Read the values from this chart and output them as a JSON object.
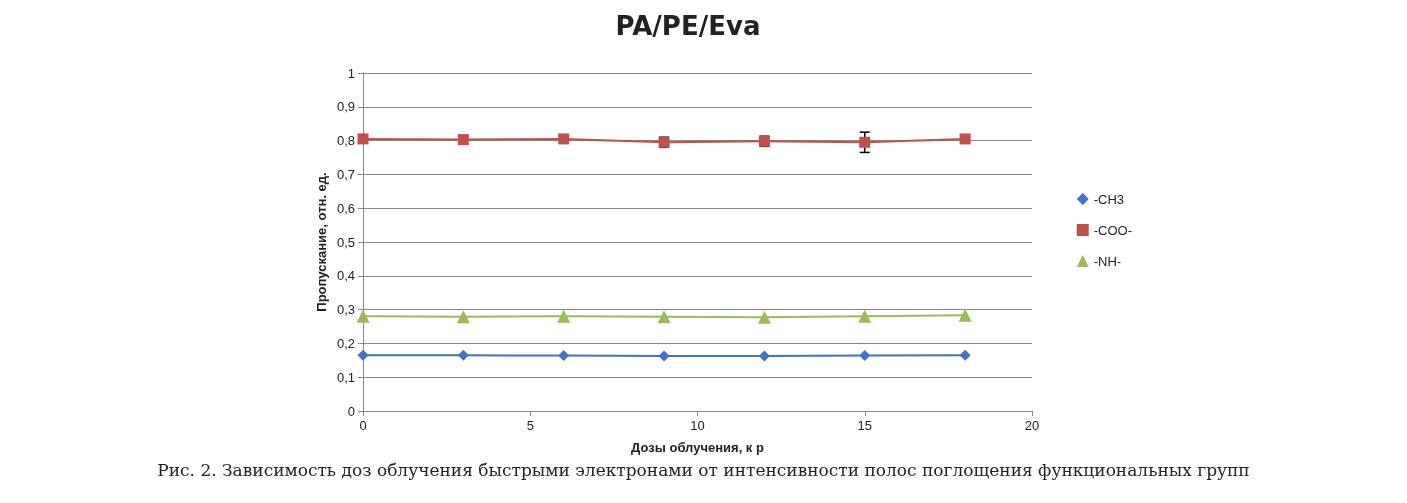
{
  "chart_data": {
    "type": "line",
    "title": "PA/PE/Eva",
    "xlabel": "Дозы облучения, к р",
    "ylabel": "Пропускание, отн. ед.",
    "x": [
      0,
      3,
      6,
      9,
      12,
      15,
      18
    ],
    "series": [
      {
        "name": "-CH3",
        "color": "#4472c4",
        "marker": "diamond",
        "values": [
          0.165,
          0.165,
          0.164,
          0.163,
          0.163,
          0.164,
          0.165
        ]
      },
      {
        "name": "-COO-",
        "color": "#c0504d",
        "marker": "square",
        "values": [
          0.805,
          0.803,
          0.805,
          0.795,
          0.798,
          0.795,
          0.805
        ],
        "errors": [
          null,
          null,
          null,
          0.015,
          0.015,
          0.03,
          null
        ]
      },
      {
        "name": "-NH-",
        "color": "#9bbb59",
        "marker": "triangle",
        "values": [
          0.28,
          0.279,
          0.28,
          0.279,
          0.277,
          0.28,
          0.283
        ]
      }
    ],
    "xlim": [
      0,
      20
    ],
    "xticks": [
      0,
      5,
      10,
      15,
      20
    ],
    "ylim": [
      0,
      1
    ],
    "yticks": [
      0,
      {
        "value": 0.1,
        "label": "0,1"
      },
      {
        "value": 0.2,
        "label": "0,2"
      },
      {
        "value": 0.3,
        "label": "0,3"
      },
      {
        "value": 0.4,
        "label": "0,4"
      },
      {
        "value": 0.5,
        "label": "0,5"
      },
      {
        "value": 0.6,
        "label": "0,6"
      },
      {
        "value": 0.7,
        "label": "0,7"
      },
      {
        "value": 0.8,
        "label": "0,8"
      },
      {
        "value": 0.9,
        "label": "0,9"
      },
      1
    ],
    "grid": "y",
    "legend": "right",
    "line_style": "solid",
    "annotations": [
      "Рис. 2. Зависимость доз облучения быстрыми электронами от интенсивности полос поглощения функциональных групп"
    ]
  }
}
